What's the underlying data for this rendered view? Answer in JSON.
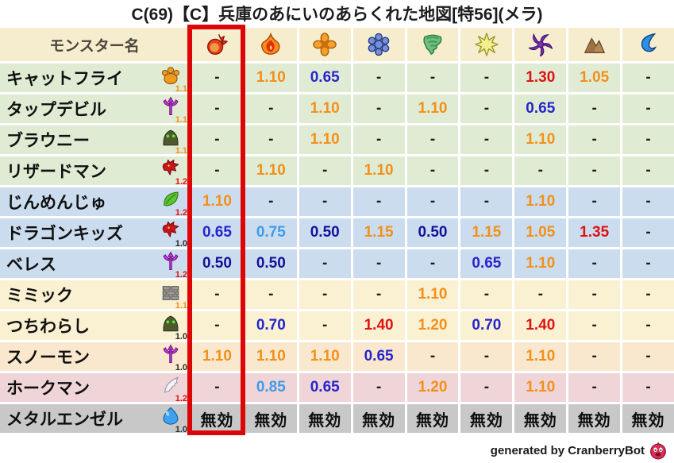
{
  "title": "C(69)【C】兵庫のあにいのあらくれた地図[特56](メラ)",
  "chart_data": {
    "type": "table",
    "header": {
      "monster_col_label": "モンスター名",
      "element_icons": [
        "mera-fireball-icon",
        "gira-flame-icon",
        "io-burst-icon",
        "hyado-ice-icon",
        "bagi-wind-icon",
        "dein-light-icon",
        "dorma-dark-icon",
        "earth-mountain-icon",
        "water-wave-icon"
      ]
    },
    "rows": [
      {
        "name": "キャットフライ",
        "icon": "paw-icon",
        "icon_mult": "1.1",
        "band": "green",
        "values": [
          "-",
          "1.10",
          "0.65",
          "-",
          "-",
          "-",
          "1.30",
          "1.05",
          "-"
        ]
      },
      {
        "name": "タップデビル",
        "icon": "trident-icon",
        "icon_mult": "1.1",
        "band": "green",
        "values": [
          "-",
          "-",
          "1.10",
          "-",
          "1.10",
          "-",
          "0.65",
          "-",
          "-"
        ]
      },
      {
        "name": "ブラウニー",
        "icon": "hood-icon",
        "icon_mult": "1.1",
        "band": "green",
        "values": [
          "-",
          "-",
          "1.10",
          "-",
          "-",
          "-",
          "1.10",
          "-",
          "-"
        ]
      },
      {
        "name": "リザードマン",
        "icon": "dragon-icon",
        "icon_mult": "1.2",
        "band": "green",
        "values": [
          "-",
          "1.10",
          "-",
          "1.10",
          "-",
          "-",
          "-",
          "-",
          "-"
        ]
      },
      {
        "name": "じんめんじゅ",
        "icon": "leaf-icon",
        "icon_mult": "1.2",
        "band": "blue",
        "values": [
          "1.10",
          "-",
          "-",
          "-",
          "-",
          "-",
          "1.10",
          "-",
          "-"
        ]
      },
      {
        "name": "ドラゴンキッズ",
        "icon": "dragon-icon",
        "icon_mult": "1.0",
        "band": "blue",
        "values": [
          "0.65",
          "0.75",
          "0.50",
          "1.15",
          "0.50",
          "1.15",
          "1.05",
          "1.35",
          "-"
        ]
      },
      {
        "name": "ベレス",
        "icon": "trident-icon",
        "icon_mult": "1.2",
        "band": "blue",
        "values": [
          "0.50",
          "0.50",
          "-",
          "-",
          "-",
          "0.65",
          "1.10",
          "-",
          "-"
        ]
      },
      {
        "name": "ミミック",
        "icon": "brick-icon",
        "icon_mult": "1.1",
        "band": "cream",
        "values": [
          "-",
          "-",
          "-",
          "-",
          "1.10",
          "-",
          "-",
          "-",
          "-"
        ]
      },
      {
        "name": "つちわらし",
        "icon": "hood-icon",
        "icon_mult": "1.0",
        "band": "cream",
        "values": [
          "-",
          "0.70",
          "-",
          "1.40",
          "1.20",
          "0.70",
          "1.40",
          "-",
          "-"
        ]
      },
      {
        "name": "スノーモン",
        "icon": "trident-icon",
        "icon_mult": "1.0",
        "band": "peach",
        "values": [
          "1.10",
          "1.10",
          "1.10",
          "0.65",
          "-",
          "-",
          "1.10",
          "-",
          "-"
        ]
      },
      {
        "name": "ホークマン",
        "icon": "wing-icon",
        "icon_mult": "1.2",
        "band": "pink",
        "values": [
          "-",
          "0.85",
          "0.65",
          "-",
          "1.20",
          "-",
          "1.10",
          "-",
          "-"
        ]
      },
      {
        "name": "メタルエンゼル",
        "icon": "slime-icon",
        "icon_mult": "1.0",
        "band": "gray",
        "values": [
          "無効",
          "無効",
          "無効",
          "無効",
          "無効",
          "無効",
          "無効",
          "無効",
          "無効"
        ]
      }
    ]
  },
  "highlight": {
    "column_index": 0
  },
  "footer": {
    "credit": "generated by CranberryBot",
    "icon": "cranberry-bot-icon"
  },
  "colors": {
    "highlight_red": "#dd0505",
    "value_up_orange": "#F39019",
    "value_up_strong_red": "#E01212",
    "value_down_light_blue": "#3E9BEA",
    "value_down_blue": "#2525CD",
    "value_down_navy": "#12129A",
    "band_green": "#E0EBD4",
    "band_blue": "#CBDCEE",
    "band_cream": "#FAF1D2",
    "band_peach": "#F9E8CE",
    "band_pink": "#EFD5D7",
    "band_gray": "#C8C8C8",
    "header_beige": "#F6EDCF"
  }
}
